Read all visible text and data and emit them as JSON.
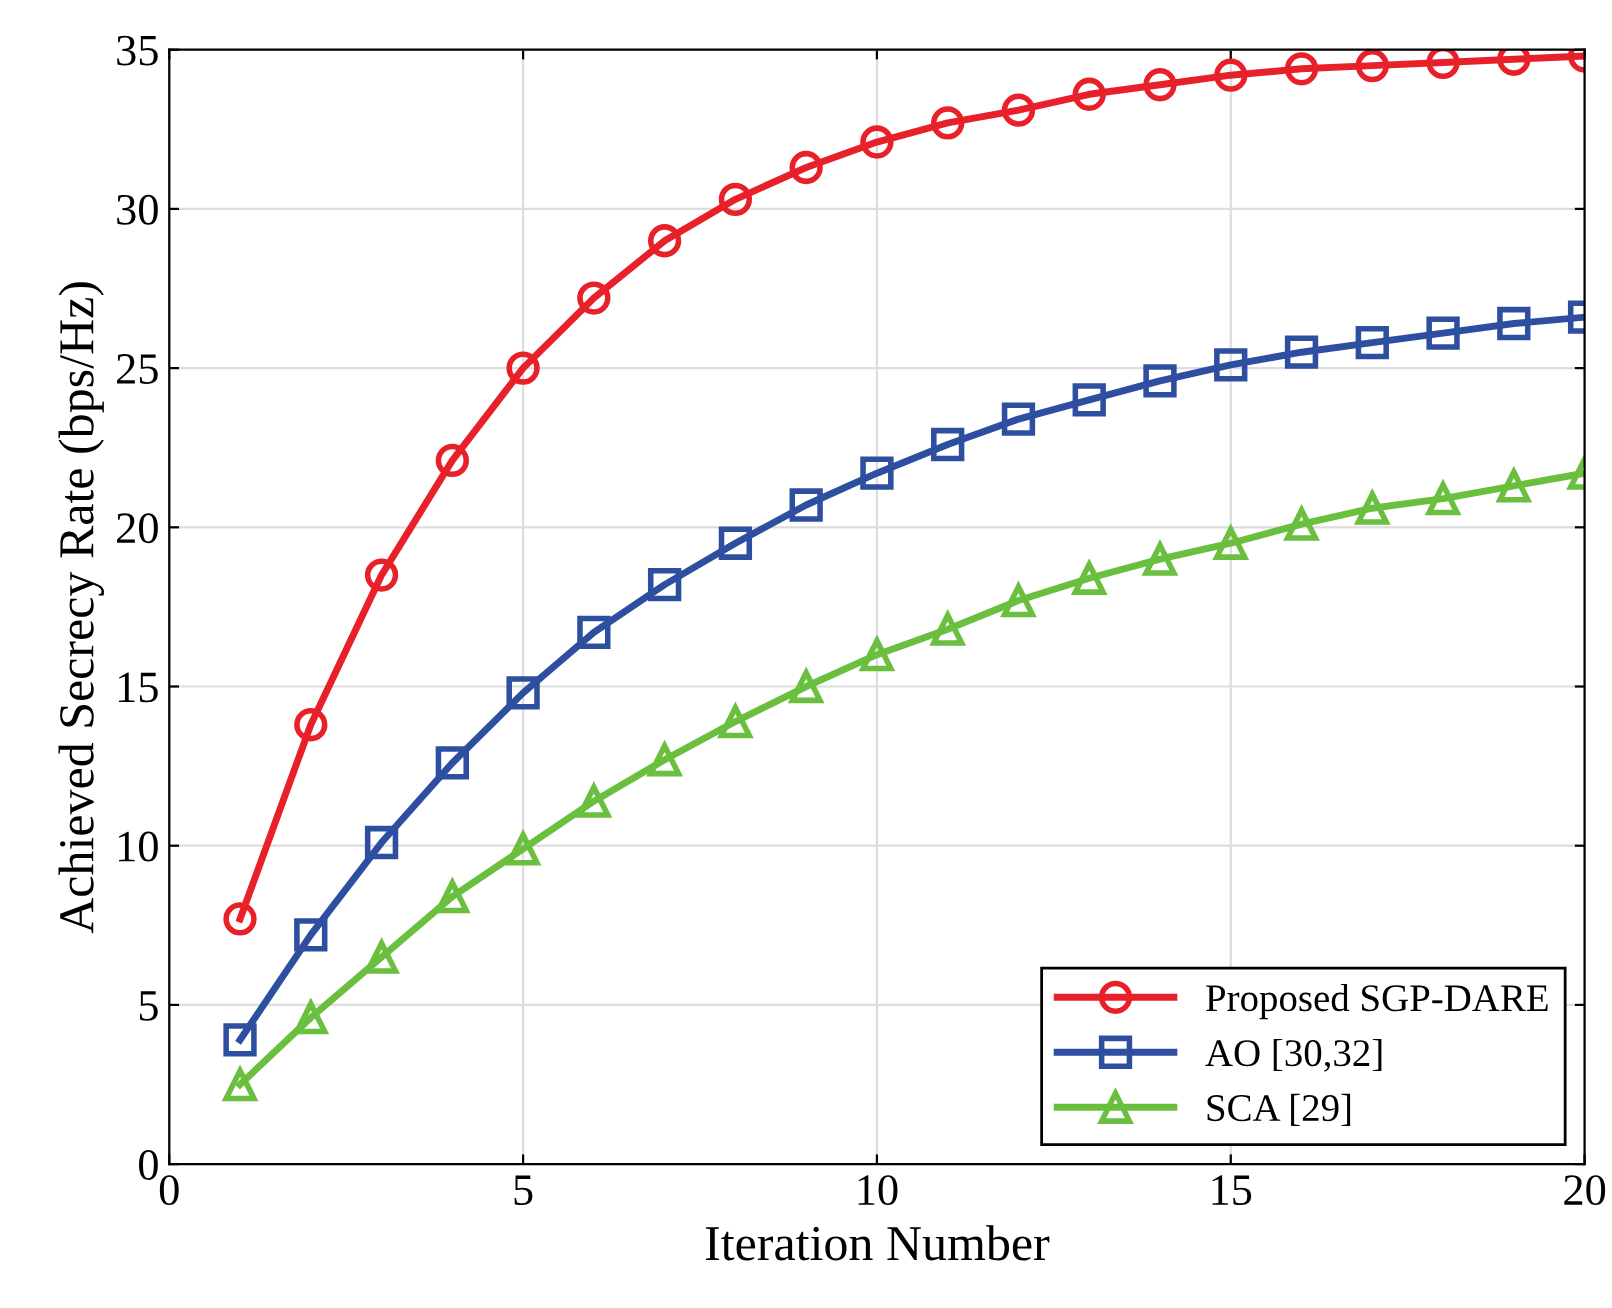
{
  "chart_data": {
    "type": "line",
    "xlabel": "Iteration Number",
    "ylabel": "Achieved Secrecy Rate (bps/Hz)",
    "x": [
      1,
      2,
      3,
      4,
      5,
      6,
      7,
      8,
      9,
      10,
      11,
      12,
      13,
      14,
      15,
      16,
      17,
      18,
      19,
      20
    ],
    "series": [
      {
        "name": "Proposed SGP-DARE",
        "color": "#e8202a",
        "marker": "circle",
        "values": [
          7.7,
          13.8,
          18.5,
          22.1,
          25.0,
          27.2,
          29.0,
          30.3,
          31.3,
          32.1,
          32.7,
          33.1,
          33.6,
          33.9,
          34.2,
          34.4,
          34.5,
          34.6,
          34.7,
          34.8
        ]
      },
      {
        "name": "AO [30,32]",
        "color": "#2e4fa0",
        "marker": "square",
        "values": [
          3.9,
          7.2,
          10.1,
          12.6,
          14.8,
          16.7,
          18.2,
          19.5,
          20.7,
          21.7,
          22.6,
          23.4,
          24.0,
          24.6,
          25.1,
          25.5,
          25.8,
          26.1,
          26.4,
          26.6
        ]
      },
      {
        "name": "SCA [29]",
        "color": "#6abf3f",
        "marker": "triangle",
        "values": [
          2.5,
          4.6,
          6.5,
          8.4,
          9.9,
          11.4,
          12.7,
          13.9,
          15.0,
          16.0,
          16.8,
          17.7,
          18.4,
          19.0,
          19.5,
          20.1,
          20.6,
          20.9,
          21.3,
          21.7
        ]
      }
    ],
    "xlim": [
      0,
      20
    ],
    "ylim": [
      0,
      35
    ],
    "xticks": [
      0,
      5,
      10,
      15,
      20
    ],
    "yticks": [
      0,
      5,
      10,
      15,
      20,
      25,
      30,
      35
    ],
    "grid": true,
    "legend": "bottom right",
    "line_style": "solid"
  }
}
